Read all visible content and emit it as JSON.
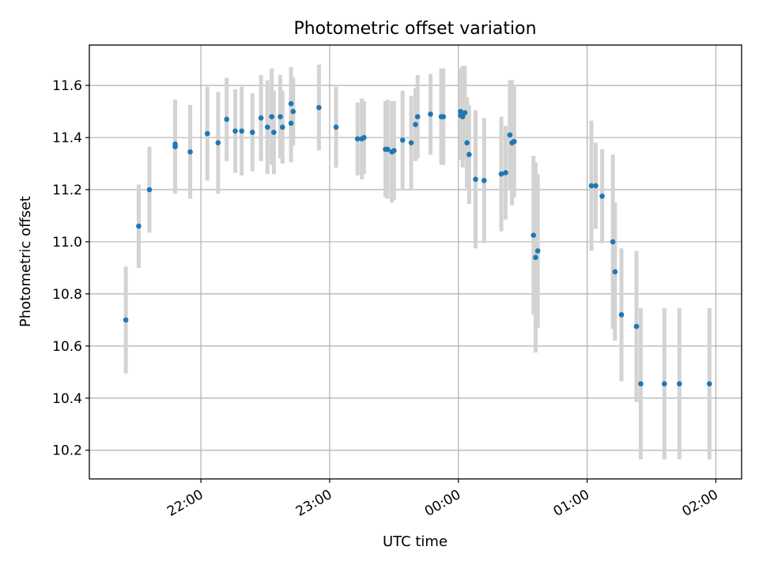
{
  "chart_data": {
    "type": "scatter",
    "title": "Photometric offset variation",
    "xlabel": "UTC time",
    "ylabel": "Photometric offset",
    "xlim": [
      "21:08",
      "02:12"
    ],
    "ylim": [
      10.09,
      11.755
    ],
    "x_ticks": [
      "22:00",
      "23:00",
      "00:00",
      "01:00",
      "02:00"
    ],
    "y_ticks": [
      10.2,
      10.4,
      10.6,
      10.8,
      11.0,
      11.2,
      11.4,
      11.6
    ],
    "y_tick_labels": [
      "10.2",
      "10.4",
      "10.6",
      "10.8",
      "11.0",
      "11.2",
      "11.4",
      "11.6"
    ],
    "grid": true,
    "marker_color": "#1f77b4",
    "errorbar_color": "#d3d3d3",
    "series": [
      {
        "x": [
          "21:25",
          "21:31",
          "21:36",
          "21:48",
          "21:48",
          "21:55",
          "22:03",
          "22:08",
          "22:12",
          "22:16",
          "22:19",
          "22:24",
          "22:28",
          "22:31",
          "22:33",
          "22:34",
          "22:37",
          "22:38",
          "22:42",
          "22:42",
          "22:43",
          "22:55",
          "23:03",
          "23:13",
          "23:15",
          "23:16",
          "23:26",
          "23:27",
          "23:29",
          "23:30",
          "23:34",
          "23:38",
          "23:40",
          "23:41",
          "23:47",
          "23:52",
          "23:53",
          "24:01",
          "24:01",
          "24:02",
          "24:03",
          "24:04",
          "24:05",
          "24:08",
          "24:12",
          "24:20",
          "24:22",
          "24:24",
          "24:25",
          "24:26",
          "24:35",
          "24:36",
          "24:37",
          "25:02",
          "25:04",
          "25:07",
          "25:12",
          "25:13",
          "25:16",
          "25:23",
          "25:25",
          "25:36",
          "25:43",
          "25:57"
        ],
        "y": [
          10.7,
          11.06,
          11.2,
          11.365,
          11.375,
          11.345,
          11.415,
          11.38,
          11.47,
          11.425,
          11.425,
          11.42,
          11.475,
          11.44,
          11.48,
          11.42,
          11.48,
          11.44,
          11.455,
          11.53,
          11.5,
          11.515,
          11.44,
          11.395,
          11.395,
          11.4,
          11.355,
          11.355,
          11.345,
          11.35,
          11.39,
          11.38,
          11.45,
          11.48,
          11.49,
          11.48,
          11.48,
          11.5,
          11.485,
          11.48,
          11.495,
          11.38,
          11.335,
          11.24,
          11.235,
          11.26,
          11.265,
          11.41,
          11.38,
          11.385,
          11.025,
          10.94,
          10.965,
          11.215,
          11.215,
          11.175,
          11.0,
          10.885,
          10.72,
          10.675,
          10.455,
          10.455,
          10.455,
          10.455
        ],
        "yerr": [
          0.205,
          0.16,
          0.165,
          0.18,
          0.17,
          0.18,
          0.18,
          0.195,
          0.16,
          0.16,
          0.17,
          0.15,
          0.165,
          0.18,
          0.185,
          0.16,
          0.16,
          0.14,
          0.15,
          0.14,
          0.13,
          0.165,
          0.155,
          0.14,
          0.155,
          0.14,
          0.185,
          0.19,
          0.195,
          0.19,
          0.19,
          0.18,
          0.14,
          0.16,
          0.155,
          0.185,
          0.185,
          0.165,
          0.17,
          0.195,
          0.18,
          0.175,
          0.19,
          0.265,
          0.24,
          0.22,
          0.18,
          0.21,
          0.24,
          0.215,
          0.305,
          0.365,
          0.295,
          0.25,
          0.165,
          0.18,
          0.335,
          0.265,
          0.255,
          0.29,
          0.29,
          0.29,
          0.29,
          0.29
        ]
      }
    ]
  }
}
